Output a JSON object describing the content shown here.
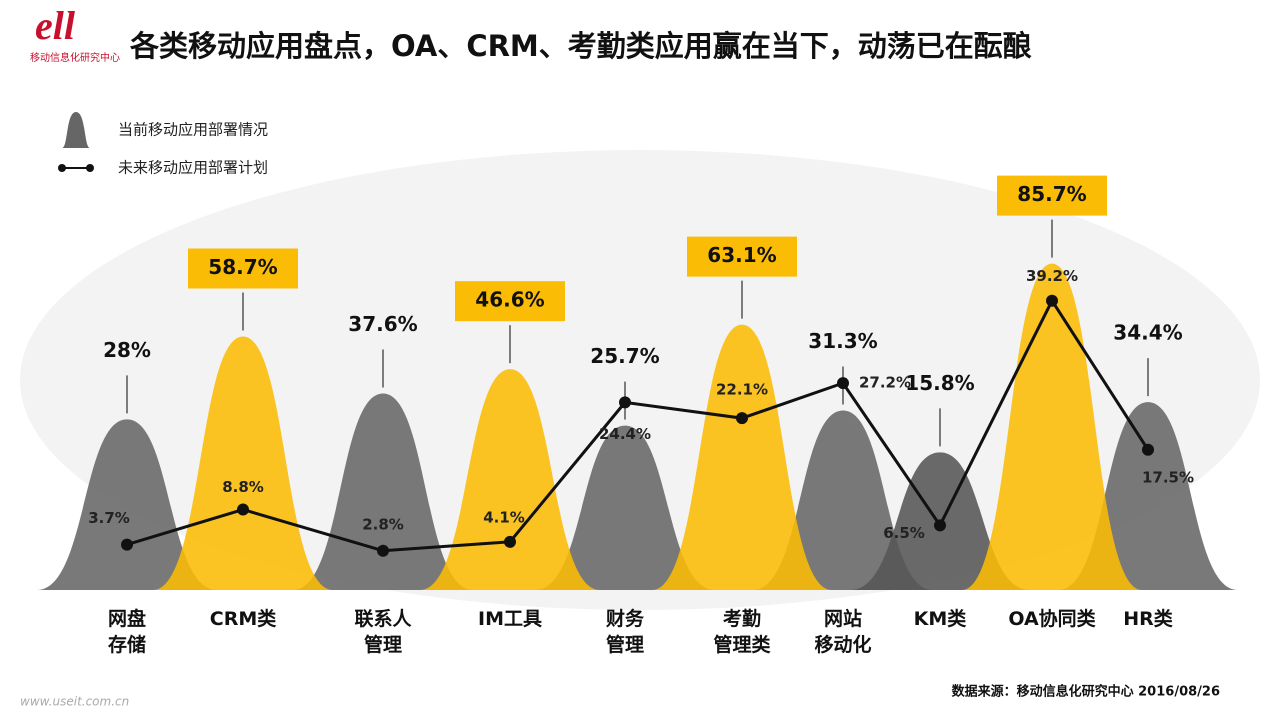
{
  "chart_data": {
    "type": "bar",
    "title": "各类移动应用盘点，OA、CRM、考勤类应用赢在当下，动荡已在酝酿",
    "logo_text": "移动信息化研究中心",
    "source": "数据来源：移动信息化研究中心 2016/08/26",
    "footer_url": "www.useit.com.cn",
    "categories": [
      "网盘\n存储",
      "CRM类",
      "联系人\n管理",
      "IM工具",
      "财务\n管理",
      "考勤\n管理类",
      "网站\n移动化",
      "KM类",
      "OA协同类",
      "HR类"
    ],
    "series": [
      {
        "name": "当前移动应用部署情况",
        "type": "bar",
        "colors": [
          "#666666",
          "#fbbc05",
          "#666666",
          "#fbbc05",
          "#666666",
          "#fbbc05",
          "#666666",
          "#555555",
          "#fbbc05",
          "#666666"
        ],
        "values": [
          28,
          58.7,
          37.6,
          46.6,
          25.7,
          63.1,
          31.3,
          15.8,
          85.7,
          34.4
        ],
        "value_labels": [
          "28%",
          "58.7%",
          "37.6%",
          "46.6%",
          "25.7%",
          "63.1%",
          "31.3%",
          "15.8%",
          "85.7%",
          "34.4%"
        ]
      },
      {
        "name": "未来移动应用部署计划",
        "type": "line",
        "color": "#111111",
        "values": [
          3.7,
          8.8,
          2.8,
          4.1,
          24.4,
          22.1,
          27.2,
          6.5,
          39.2,
          17.5
        ],
        "value_labels": [
          "3.7%",
          "8.8%",
          "2.8%",
          "4.1%",
          "24.4%",
          "22.1%",
          "27.2%",
          "6.5%",
          "39.2%",
          "17.5%"
        ]
      }
    ]
  }
}
